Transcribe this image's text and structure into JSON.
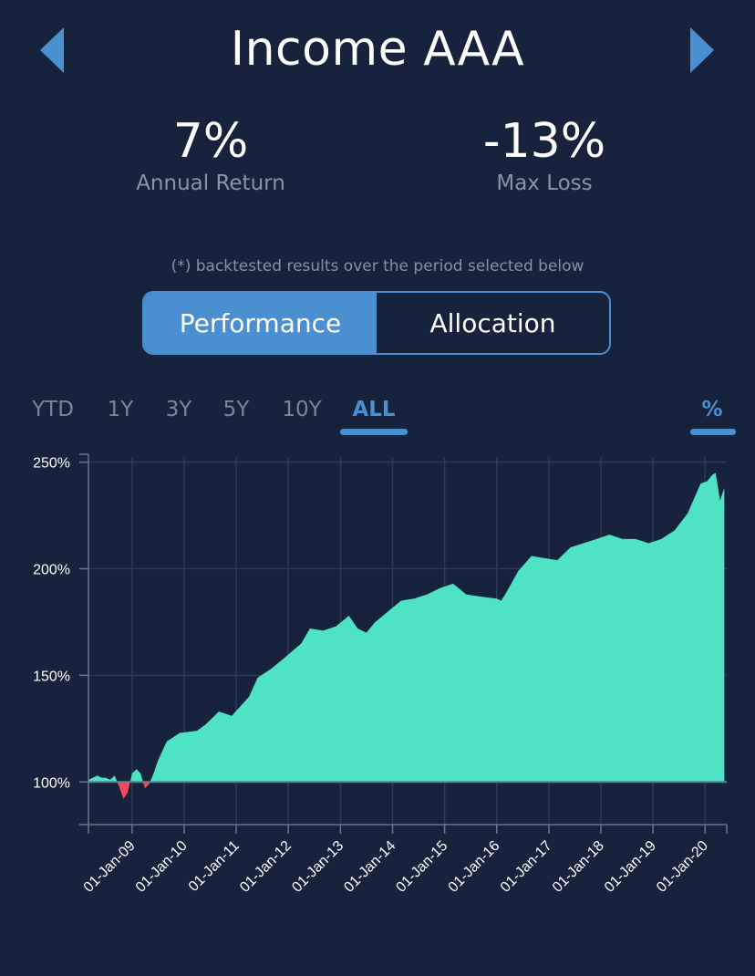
{
  "header": {
    "title": "Income AAA",
    "prev_icon": "chevron-left-icon",
    "next_icon": "chevron-right-icon"
  },
  "stats": {
    "annual_return": {
      "value": "7%",
      "label": "Annual Return"
    },
    "max_loss": {
      "value": "-13%",
      "label": "Max Loss"
    }
  },
  "footnote": "(*) backtested results over the period selected below",
  "segmented": {
    "performance": "Performance",
    "allocation": "Allocation",
    "active": "performance"
  },
  "periods": {
    "items": [
      "YTD",
      "1Y",
      "3Y",
      "5Y",
      "10Y",
      "ALL"
    ],
    "active": "ALL",
    "unit_toggle": "%"
  },
  "colors": {
    "background": "#17223c",
    "accent": "#4a8fd0",
    "gain": "#4de3c4",
    "loss": "#f0485e"
  },
  "chart_data": {
    "type": "area",
    "title": "",
    "xlabel": "",
    "ylabel": "",
    "baseline": 100,
    "ylim": [
      80,
      252
    ],
    "xlim": [
      "2008-03-01",
      "2020-06-01"
    ],
    "y_ticks": [
      {
        "value": 100,
        "label": "100%"
      },
      {
        "value": 150,
        "label": "150%"
      },
      {
        "value": 200,
        "label": "200%"
      },
      {
        "value": 250,
        "label": "250%"
      }
    ],
    "x_ticks": [
      {
        "value": "2009-01-01",
        "label": "01-Jan-09"
      },
      {
        "value": "2010-01-01",
        "label": "01-Jan-10"
      },
      {
        "value": "2011-01-01",
        "label": "01-Jan-11"
      },
      {
        "value": "2012-01-01",
        "label": "01-Jan-12"
      },
      {
        "value": "2013-01-01",
        "label": "01-Jan-13"
      },
      {
        "value": "2014-01-01",
        "label": "01-Jan-14"
      },
      {
        "value": "2015-01-01",
        "label": "01-Jan-15"
      },
      {
        "value": "2016-01-01",
        "label": "01-Jan-16"
      },
      {
        "value": "2017-01-01",
        "label": "01-Jan-17"
      },
      {
        "value": "2018-01-01",
        "label": "01-Jan-18"
      },
      {
        "value": "2019-01-01",
        "label": "01-Jan-19"
      },
      {
        "value": "2020-01-01",
        "label": "01-Jan-20"
      }
    ],
    "grid": true,
    "series": [
      {
        "x": [
          "2008-03-01",
          "2008-04-01",
          "2008-05-01",
          "2008-06-01",
          "2008-07-01",
          "2008-08-01",
          "2008-09-01",
          "2008-10-01",
          "2008-11-01",
          "2008-12-01",
          "2009-01-01",
          "2009-02-01",
          "2009-03-01",
          "2009-04-01",
          "2009-05-01",
          "2009-06-01",
          "2009-07-01",
          "2009-09-01",
          "2009-12-01",
          "2010-04-01",
          "2010-06-01",
          "2010-09-01",
          "2010-12-01",
          "2011-04-01",
          "2011-06-01",
          "2011-09-01",
          "2011-12-01",
          "2012-04-01",
          "2012-06-01",
          "2012-09-01",
          "2012-12-01",
          "2013-03-01",
          "2013-05-01",
          "2013-07-01",
          "2013-09-01",
          "2013-12-01",
          "2014-03-01",
          "2014-06-01",
          "2014-09-01",
          "2014-12-01",
          "2015-03-01",
          "2015-06-01",
          "2015-09-01",
          "2016-01-01",
          "2016-02-01",
          "2016-03-01",
          "2016-06-01",
          "2016-09-01",
          "2016-12-01",
          "2017-03-01",
          "2017-06-01",
          "2017-09-01",
          "2017-12-01",
          "2018-03-01",
          "2018-06-01",
          "2018-09-01",
          "2018-12-01",
          "2019-03-01",
          "2019-06-01",
          "2019-09-01",
          "2019-12-01",
          "2020-01-15",
          "2020-02-20",
          "2020-03-15",
          "2020-04-15",
          "2020-05-15"
        ],
        "values": [
          101,
          102,
          103,
          102,
          102,
          101,
          103,
          98,
          92,
          95,
          104,
          106,
          104,
          97,
          99,
          104,
          110,
          119,
          123,
          124,
          127,
          133,
          131,
          140,
          149,
          153,
          158,
          165,
          172,
          171,
          173,
          178,
          172,
          170,
          175,
          180,
          185,
          186,
          188,
          191,
          193,
          188,
          187,
          186,
          185,
          188,
          199,
          206,
          205,
          204,
          210,
          212,
          214,
          216,
          214,
          214,
          212,
          214,
          218,
          226,
          240,
          241,
          244,
          245,
          232,
          238
        ]
      }
    ]
  }
}
